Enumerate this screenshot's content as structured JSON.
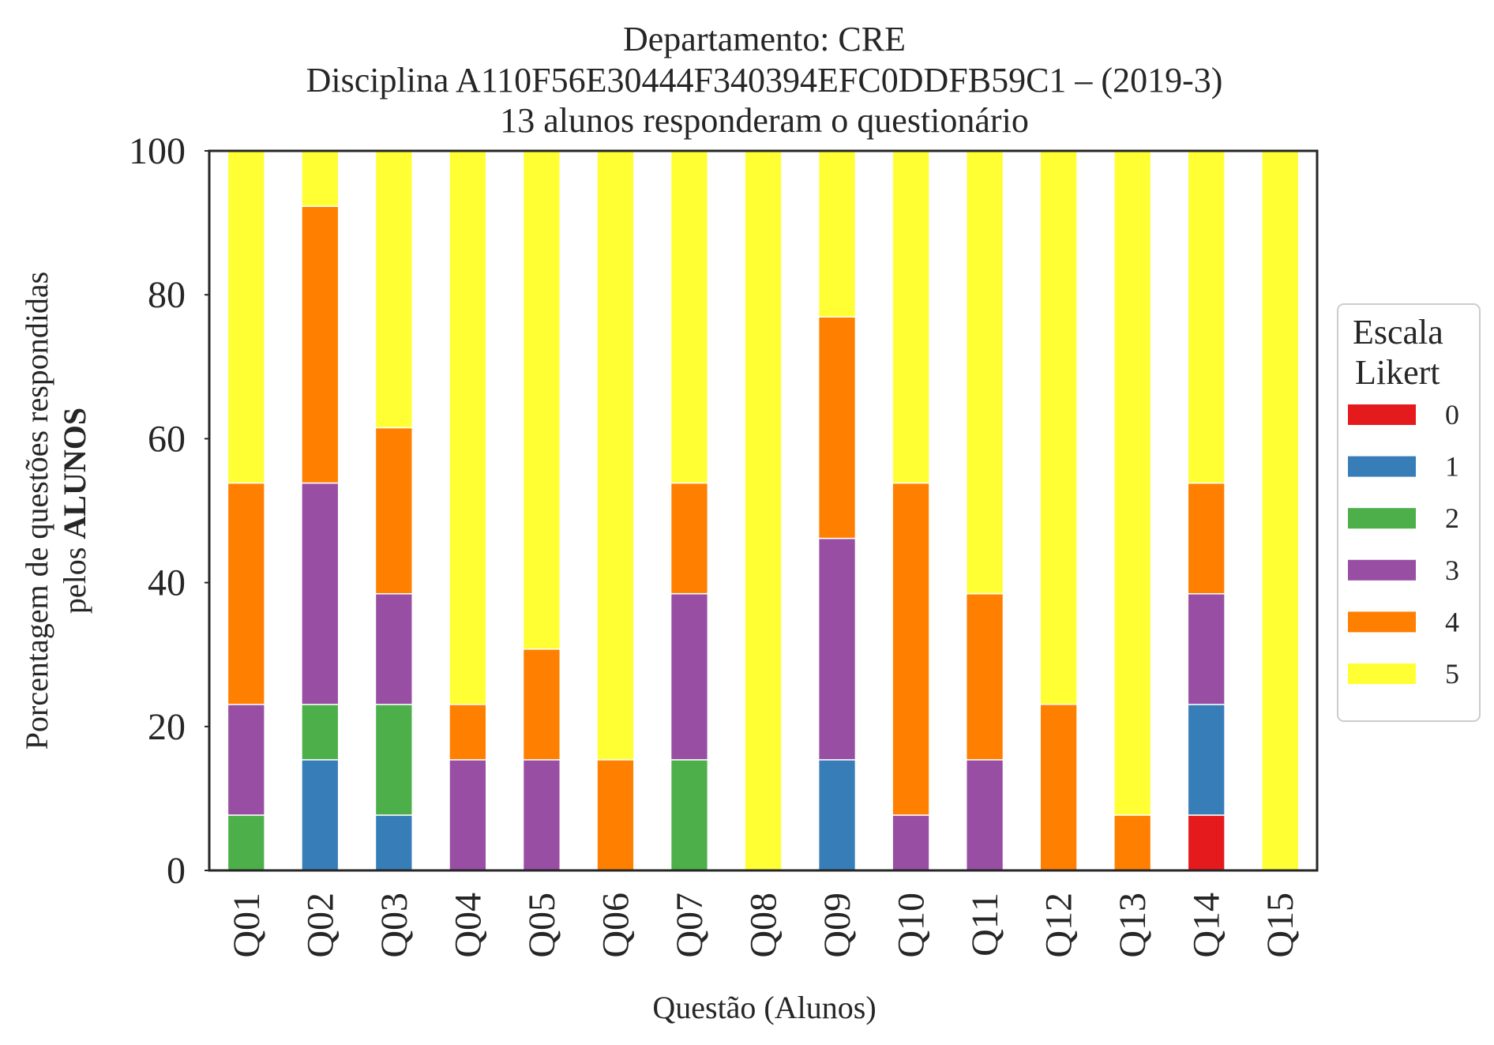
{
  "chart_data": {
    "type": "bar",
    "stacked": true,
    "title_lines": [
      "Departamento: CRE",
      "Disciplina A110F56E30444F340394EFC0DDFB59C1 – (2019-3)",
      "13 alunos responderam o questionário"
    ],
    "xlabel": "Questão (Alunos)",
    "ylabel_line1": "Porcentagem de questões respondidas",
    "ylabel_line2_prefix": "pelos ",
    "ylabel_line2_bold": "ALUNOS",
    "ylim": [
      0,
      100
    ],
    "yticks": [
      "0",
      "20",
      "40",
      "60",
      "80",
      "100"
    ],
    "grid": false,
    "categories": [
      "Q01",
      "Q02",
      "Q03",
      "Q04",
      "Q05",
      "Q06",
      "Q07",
      "Q08",
      "Q09",
      "Q10",
      "Q11",
      "Q12",
      "Q13",
      "Q14",
      "Q15"
    ],
    "legend": {
      "title_line1": "Escala",
      "title_line2": "Likert",
      "placement": "right-center"
    },
    "series": [
      {
        "name": "0",
        "color": "#e41a1c",
        "values": [
          0,
          0,
          0,
          0,
          0,
          0,
          0,
          0,
          0,
          0,
          0,
          0,
          0,
          7.69,
          0
        ]
      },
      {
        "name": "1",
        "color": "#377eb8",
        "values": [
          0,
          15.38,
          7.69,
          0,
          0,
          0,
          0,
          0,
          15.38,
          0,
          0,
          0,
          0,
          15.38,
          0
        ]
      },
      {
        "name": "2",
        "color": "#4daf4a",
        "values": [
          7.69,
          7.69,
          15.38,
          0,
          0,
          0,
          15.38,
          0,
          0,
          0,
          0,
          0,
          0,
          0,
          0
        ]
      },
      {
        "name": "3",
        "color": "#984ea3",
        "values": [
          15.38,
          30.77,
          15.38,
          15.38,
          15.38,
          0,
          23.08,
          0,
          30.77,
          7.69,
          15.38,
          0,
          0,
          15.38,
          0
        ]
      },
      {
        "name": "4",
        "color": "#ff7f00",
        "values": [
          30.77,
          38.46,
          23.08,
          7.69,
          15.38,
          15.38,
          15.38,
          0,
          30.77,
          46.15,
          23.08,
          23.08,
          7.69,
          15.38,
          0
        ]
      },
      {
        "name": "5",
        "color": "#ffff33",
        "values": [
          46.15,
          7.69,
          38.46,
          76.92,
          69.23,
          84.62,
          46.15,
          100,
          23.08,
          46.15,
          61.54,
          76.92,
          92.31,
          46.15,
          100
        ]
      }
    ]
  }
}
